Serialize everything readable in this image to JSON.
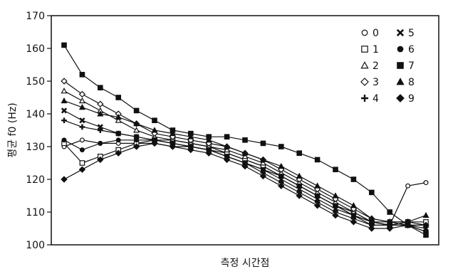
{
  "chart_data": {
    "type": "line",
    "title": "",
    "xlabel": "측정 시간점",
    "ylabel": "평균 f0 (Hz)",
    "ylim": [
      100,
      170
    ],
    "yticks": [
      100,
      110,
      120,
      130,
      140,
      150,
      160,
      170
    ],
    "x": [
      1,
      2,
      3,
      4,
      5,
      6,
      7,
      8,
      9,
      10,
      11,
      12,
      13,
      14,
      15,
      16,
      17,
      18,
      19,
      20,
      21
    ],
    "grid": false,
    "legend_position": "top-right",
    "series": [
      {
        "name": "0",
        "marker": "circle-open",
        "values": [
          130,
          132,
          131,
          131,
          131,
          131,
          130,
          130,
          129,
          128,
          126,
          124,
          121,
          118,
          115,
          112,
          109,
          107,
          106,
          118,
          119
        ]
      },
      {
        "name": "1",
        "marker": "square-open",
        "values": [
          131,
          125,
          127,
          129,
          131,
          132,
          132,
          131,
          130,
          128,
          126,
          124,
          121,
          118,
          115,
          112,
          110,
          107,
          106,
          107,
          107
        ]
      },
      {
        "name": "2",
        "marker": "triangle-open",
        "values": [
          147,
          144,
          141,
          138,
          135,
          133,
          132,
          131,
          130,
          129,
          127,
          125,
          122,
          119,
          116,
          113,
          110,
          107,
          106,
          106,
          106
        ]
      },
      {
        "name": "3",
        "marker": "diamond-open",
        "values": [
          150,
          146,
          143,
          140,
          137,
          134,
          133,
          132,
          131,
          130,
          128,
          126,
          123,
          120,
          117,
          114,
          111,
          108,
          107,
          107,
          106
        ]
      },
      {
        "name": "4",
        "marker": "plus-filled",
        "values": [
          138,
          136,
          135,
          134,
          133,
          132,
          131,
          130,
          129,
          127,
          125,
          122,
          119,
          116,
          113,
          110,
          108,
          106,
          106,
          106,
          104
        ]
      },
      {
        "name": "5",
        "marker": "x-filled",
        "values": [
          141,
          138,
          136,
          134,
          133,
          132,
          131,
          130,
          129,
          127,
          125,
          123,
          120,
          117,
          114,
          111,
          109,
          107,
          107,
          106,
          105
        ]
      },
      {
        "name": "6",
        "marker": "circle-filled",
        "values": [
          132,
          129,
          131,
          132,
          132,
          132,
          131,
          130,
          129,
          127,
          125,
          123,
          121,
          118,
          115,
          112,
          109,
          106,
          106,
          106,
          104
        ]
      },
      {
        "name": "7",
        "marker": "square-filled",
        "values": [
          161,
          152,
          148,
          145,
          141,
          138,
          135,
          134,
          133,
          133,
          132,
          131,
          130,
          128,
          126,
          123,
          120,
          116,
          110,
          106,
          103
        ]
      },
      {
        "name": "8",
        "marker": "triangle-filled",
        "values": [
          144,
          142,
          140,
          139,
          137,
          135,
          134,
          133,
          132,
          130,
          128,
          126,
          124,
          121,
          118,
          115,
          112,
          108,
          107,
          107,
          109
        ]
      },
      {
        "name": "9",
        "marker": "diamond-filled",
        "values": [
          120,
          123,
          126,
          128,
          130,
          131,
          130,
          129,
          128,
          126,
          124,
          121,
          118,
          115,
          112,
          109,
          107,
          105,
          105,
          106,
          106
        ]
      }
    ]
  }
}
